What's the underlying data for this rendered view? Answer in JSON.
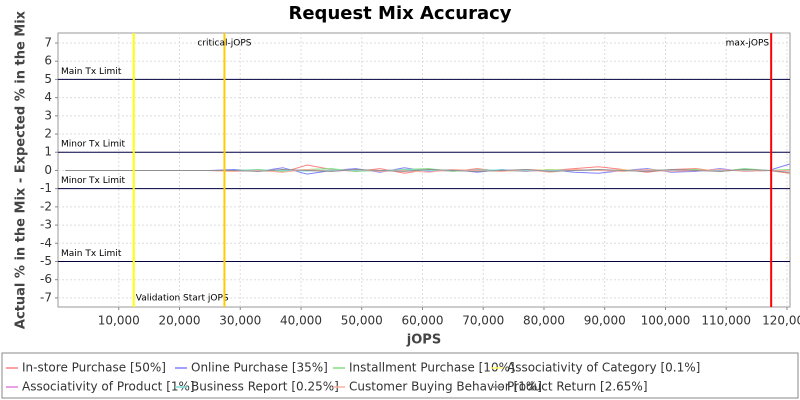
{
  "chart_data": {
    "type": "line",
    "title": "Request Mix Accuracy",
    "x_label": "jOPS",
    "y_label": "Actual % in the Mix - Expected % in the Mix",
    "xlim": [
      0,
      120500
    ],
    "ylim": [
      -7.5,
      7.55
    ],
    "xticks": [
      {
        "value": 10000,
        "label": "10,000"
      },
      {
        "value": 20000,
        "label": "20,000"
      },
      {
        "value": 30000,
        "label": "30,000"
      },
      {
        "value": 40000,
        "label": "40,000"
      },
      {
        "value": 50000,
        "label": "50,000"
      },
      {
        "value": 60000,
        "label": "60,000"
      },
      {
        "value": 70000,
        "label": "70,000"
      },
      {
        "value": 80000,
        "label": "80,000"
      },
      {
        "value": 90000,
        "label": "90,000"
      },
      {
        "value": 100000,
        "label": "100,000"
      },
      {
        "value": 110000,
        "label": "110,000"
      },
      {
        "value": 120000,
        "label": "120,000"
      }
    ],
    "yticks": [
      -7,
      -6,
      -5,
      -4,
      -3,
      -2,
      -1,
      0,
      1,
      2,
      3,
      4,
      5,
      6,
      7
    ],
    "grid": true,
    "hlines": [
      {
        "value": 5,
        "label": "Main Tx Limit"
      },
      {
        "value": 1,
        "label": "Minor Tx Limit"
      },
      {
        "value": -1,
        "label": "Minor Tx Limit"
      },
      {
        "value": -5,
        "label": "Main Tx Limit"
      }
    ],
    "vlines": [
      {
        "value": 12470,
        "label": "Validation Start jOPS",
        "color": "#ffff00"
      },
      {
        "value": 27400,
        "label": "critical-jOPS",
        "color": "#ffcc00"
      },
      {
        "value": 117400,
        "label": "max-jOPS",
        "color": "#ff0000"
      }
    ],
    "x": [
      1200,
      13000,
      25000,
      29000,
      33000,
      37000,
      41000,
      45000,
      49000,
      53000,
      57000,
      61000,
      65000,
      69000,
      73000,
      77000,
      81000,
      85000,
      89000,
      93000,
      97000,
      101000,
      105000,
      109000,
      113000,
      117000,
      120400
    ],
    "series": [
      {
        "name": "In-store Purchase [50%]",
        "color": "#ff8080",
        "values": [
          0,
          0,
          0,
          -0.05,
          0.05,
          -0.1,
          0.3,
          0.05,
          -0.05,
          0.1,
          -0.15,
          0.05,
          -0.05,
          0.1,
          -0.05,
          0.05,
          0,
          0.1,
          0.2,
          0.05,
          -0.1,
          0.05,
          0.1,
          -0.05,
          0.05,
          0,
          -0.15
        ]
      },
      {
        "name": "Online Purchase [35%]",
        "color": "#8080ff",
        "values": [
          0,
          0,
          0,
          0.05,
          -0.05,
          0.15,
          -0.2,
          0,
          0.1,
          -0.1,
          0.15,
          -0.05,
          0.05,
          -0.1,
          0.05,
          -0.05,
          0.05,
          -0.1,
          -0.15,
          0,
          0.1,
          -0.1,
          -0.05,
          0.1,
          -0.05,
          0,
          0.35
        ]
      },
      {
        "name": "Installment Purchase [10%]",
        "color": "#80e080",
        "values": [
          0,
          0,
          0,
          0,
          0.05,
          -0.05,
          0.05,
          0.1,
          -0.05,
          0,
          0.05,
          0.1,
          -0.05,
          0.05,
          0,
          -0.05,
          0.05,
          0,
          0.05,
          -0.05,
          0.05,
          0,
          0.05,
          -0.05,
          0.1,
          0,
          0.05
        ]
      },
      {
        "name": "Associativity of Category [0.1%]",
        "color": "#ffff60",
        "values": [
          0,
          0,
          0,
          0,
          0,
          0.02,
          -0.02,
          0,
          0.02,
          0,
          -0.02,
          0,
          0.02,
          0,
          -0.02,
          0,
          0.02,
          0,
          0,
          0.02,
          0,
          -0.02,
          0,
          0.02,
          0,
          0,
          0
        ]
      },
      {
        "name": "Associativity of Product [1%]",
        "color": "#e080e0",
        "values": [
          0,
          0,
          0,
          0,
          -0.02,
          0.03,
          0,
          -0.03,
          0.02,
          0,
          0.03,
          -0.02,
          0,
          0.02,
          0,
          -0.03,
          0,
          0.02,
          0,
          -0.02,
          0.03,
          0,
          -0.02,
          0,
          0.02,
          0,
          0
        ]
      },
      {
        "name": "Business Report [0.25%]",
        "color": "#80e0e0",
        "values": [
          0,
          0,
          0,
          0,
          0.02,
          0,
          -0.03,
          0.02,
          0,
          -0.02,
          0.03,
          0,
          -0.02,
          0,
          0.03,
          0,
          -0.02,
          0.02,
          0,
          0,
          -0.03,
          0.02,
          0,
          -0.02,
          0.02,
          0,
          0
        ]
      },
      {
        "name": "Customer Buying Behavior [1%]",
        "color": "#ffb0a0",
        "values": [
          0,
          0,
          0,
          -0.05,
          0,
          -0.1,
          0.05,
          -0.05,
          0.05,
          -0.05,
          0,
          -0.1,
          0.05,
          0,
          -0.05,
          0.05,
          -0.1,
          0.05,
          0,
          -0.05,
          0.05,
          -0.05,
          0,
          0.05,
          -0.05,
          0,
          0
        ]
      },
      {
        "name": "Product Return [2.65%]",
        "color": "#909090",
        "values": [
          0,
          0,
          0,
          0,
          -0.05,
          0.05,
          0,
          -0.05,
          0.05,
          0,
          -0.05,
          0.05,
          0,
          -0.05,
          0,
          0.05,
          -0.05,
          0,
          0.05,
          0,
          -0.05,
          0.05,
          0,
          -0.05,
          0.05,
          0,
          -0.1
        ]
      }
    ]
  }
}
